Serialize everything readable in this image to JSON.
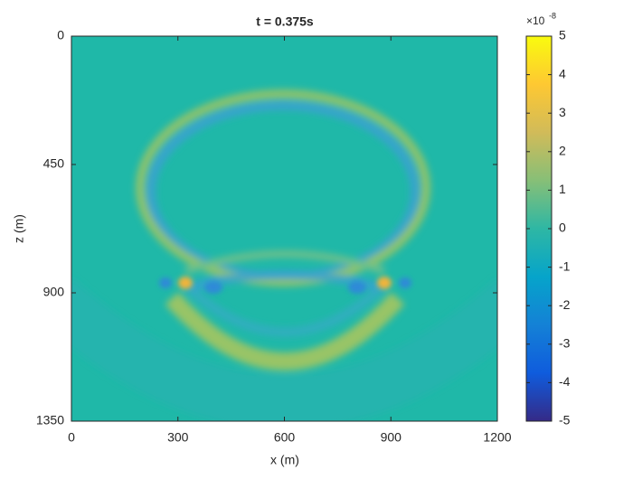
{
  "chart_data": {
    "type": "image",
    "title": "t = 0.375s",
    "x_label": "x (m)",
    "y_label": "z (m)",
    "xlim": [
      0,
      1200
    ],
    "xticks": [
      0,
      300,
      600,
      900,
      1200
    ],
    "ylim": [
      0,
      1350
    ],
    "yticks": [
      0,
      450,
      900,
      1350
    ],
    "y_reverse": true,
    "colorbar": {
      "lim": [
        -5,
        5
      ],
      "ticks": [
        -5,
        -4,
        -3,
        -2,
        -1,
        0,
        1,
        2,
        3,
        4,
        5
      ],
      "multiplier": "×10",
      "exponent": "-8",
      "colors": [
        "#352a87",
        "#0f5cdd",
        "#1481d6",
        "#06a4ca",
        "#2eb7a4",
        "#87bf77",
        "#d1bb59",
        "#fec832",
        "#f9fb0e"
      ]
    }
  }
}
